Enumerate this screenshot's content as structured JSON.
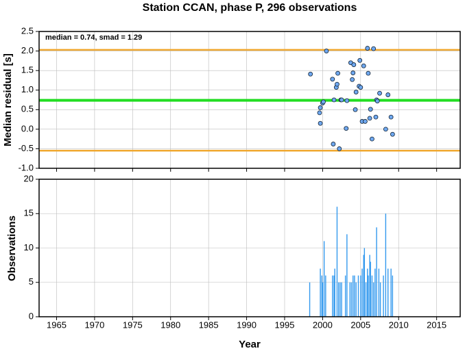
{
  "chart_data": [
    {
      "type": "scatter",
      "title": "Station CCAN, phase P, 296 observations",
      "annotation": "median = 0.74, smad = 1.29",
      "ylabel": "Median residual [s]",
      "color": "#6fa8f0",
      "grid": true,
      "xlim": [
        1962.7,
        2018.1
      ],
      "xticks": [
        1965,
        1970,
        1975,
        1980,
        1985,
        1990,
        1995,
        2000,
        2005,
        2010,
        2015
      ],
      "ylim": [
        -1.0,
        2.5
      ],
      "yticks": [
        {
          "value": -1.0,
          "label": "-1.0"
        },
        {
          "value": -0.5,
          "label": "-0.5"
        },
        {
          "value": 0.0,
          "label": "0.0"
        },
        {
          "value": 0.5,
          "label": "0.5"
        },
        {
          "value": 1.0,
          "label": "1.0"
        },
        {
          "value": 1.5,
          "label": "1.5"
        },
        {
          "value": 2.0,
          "label": "2.0"
        },
        {
          "value": 2.5,
          "label": "2.5"
        }
      ],
      "reference_lines": [
        {
          "value": 2.03,
          "color": "#f0a830"
        },
        {
          "value": 0.74,
          "color": "#22dd22"
        },
        {
          "value": -0.55,
          "color": "#f0a830"
        }
      ],
      "x": [
        1998.4,
        1999.6,
        1999.7,
        1999.7,
        2000.0,
        2000.1,
        2000.5,
        2001.3,
        2001.4,
        2001.5,
        2001.8,
        2001.9,
        2002.0,
        2002.2,
        2002.4,
        2002.5,
        2003.1,
        2003.2,
        2003.7,
        2003.9,
        2004.0,
        2004.1,
        2004.3,
        2004.4,
        2004.8,
        2004.9,
        2005.0,
        2005.2,
        2005.4,
        2005.6,
        2005.9,
        2006.0,
        2006.2,
        2006.3,
        2006.5,
        2006.7,
        2007.0,
        2007.1,
        2007.2,
        2007.5,
        2008.3,
        2008.6,
        2009.0,
        2009.2
      ],
      "values": [
        1.41,
        0.42,
        0.55,
        0.15,
        0.67,
        0.7,
        2.0,
        1.28,
        -0.38,
        0.75,
        1.07,
        1.15,
        1.43,
        -0.5,
        0.75,
        0.75,
        0.02,
        0.73,
        1.7,
        1.27,
        1.44,
        1.65,
        0.5,
        0.95,
        1.1,
        1.76,
        1.07,
        0.2,
        1.62,
        0.2,
        2.07,
        1.43,
        0.28,
        0.51,
        -0.25,
        2.06,
        0.31,
        0.75,
        0.72,
        0.92,
        0.0,
        0.88,
        0.31,
        -0.13
      ]
    },
    {
      "type": "bar",
      "xlabel": "Year",
      "ylabel": "Observations",
      "color": "#3399ee",
      "grid": true,
      "xlim": [
        1962.7,
        2018.1
      ],
      "xticks": [
        1965,
        1970,
        1975,
        1980,
        1985,
        1990,
        1995,
        2000,
        2005,
        2010,
        2015
      ],
      "ylim": [
        0,
        20
      ],
      "yticks": [
        0,
        5,
        10,
        15,
        20
      ],
      "x": [
        1998.3,
        1999.7,
        1999.9,
        2000.0,
        2000.2,
        2000.4,
        2001.3,
        2001.5,
        2001.6,
        2001.9,
        2002.1,
        2002.3,
        2002.5,
        2003.0,
        2003.2,
        2003.6,
        2003.8,
        2004.0,
        2004.2,
        2004.4,
        2004.7,
        2005.0,
        2005.2,
        2005.4,
        2005.5,
        2005.7,
        2005.9,
        2006.0,
        2006.2,
        2006.3,
        2006.5,
        2006.7,
        2006.9,
        2007.1,
        2007.4,
        2007.6,
        2008.0,
        2008.3,
        2008.6,
        2009.0,
        2009.2
      ],
      "values": [
        5,
        7,
        6,
        5,
        11,
        6,
        6,
        6,
        7,
        16,
        5,
        5,
        5,
        6,
        12,
        5,
        5,
        6,
        6,
        5,
        6,
        6,
        7,
        9,
        10,
        5,
        7,
        6,
        9,
        8,
        6,
        5,
        7,
        13,
        7,
        5,
        6,
        15,
        7,
        7,
        6
      ]
    }
  ]
}
